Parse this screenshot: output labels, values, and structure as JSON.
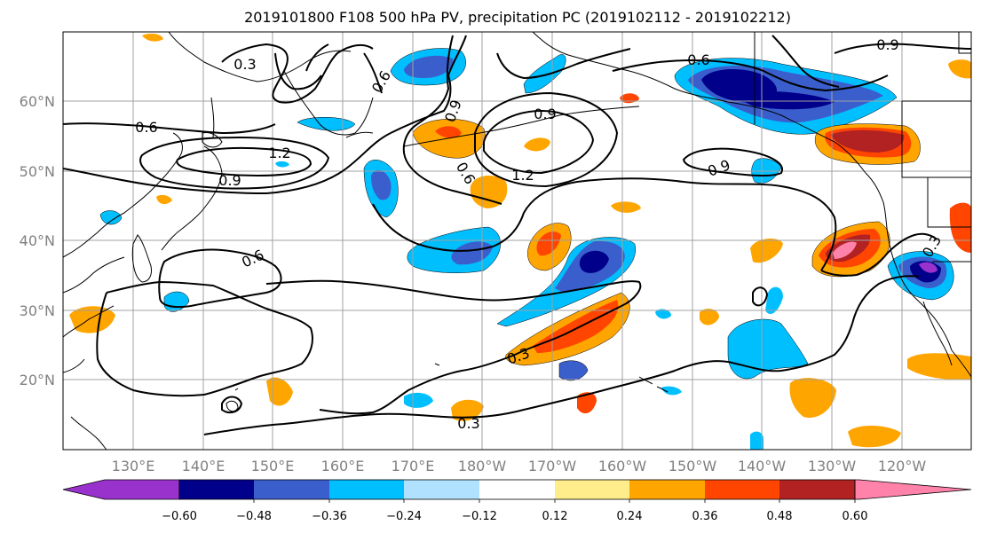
{
  "title": "2019101800 F108 500 hPa PV, precipitation PC (2019102112 - 2019102212)",
  "lat_labels": [
    "60°N",
    "50°N",
    "40°N",
    "30°N",
    "20°N"
  ],
  "lon_labels": [
    "130°E",
    "140°E",
    "150°E",
    "160°E",
    "170°E",
    "180°W",
    "170°W",
    "160°W",
    "150°W",
    "140°W",
    "130°W",
    "120°W"
  ],
  "colorbar": {
    "labels": [
      "−0.60",
      "−0.48",
      "−0.36",
      "−0.24",
      "−0.12",
      "0.12",
      "0.24",
      "0.36",
      "0.48",
      "0.60"
    ],
    "colors": [
      "#9932cc",
      "#00008b",
      "#3a5fcd",
      "#00bfff",
      "#b0e2ff",
      "#ffffff",
      "#ffec8b",
      "#ffa500",
      "#ff4500",
      "#b22222",
      "#ff82ab"
    ]
  },
  "contour_labels": [
    "0.3",
    "0.6",
    "1.2",
    "0.9",
    "0.9",
    "0.6",
    "0.9",
    "0.9",
    "1.2",
    "0.6",
    "0.6",
    "0.9",
    "0.3",
    "0.3",
    "0.3",
    "0.6"
  ],
  "colors": {
    "neg_060": "#9932cc",
    "neg_048": "#00008b",
    "neg_036": "#3a5fcd",
    "neg_024": "#00bfff",
    "neg_012": "#b0e2ff",
    "pos_012": "#ffec8b",
    "pos_024": "#ffa500",
    "pos_036": "#ff4500",
    "pos_048": "#b22222",
    "pos_060": "#ff82ab"
  }
}
